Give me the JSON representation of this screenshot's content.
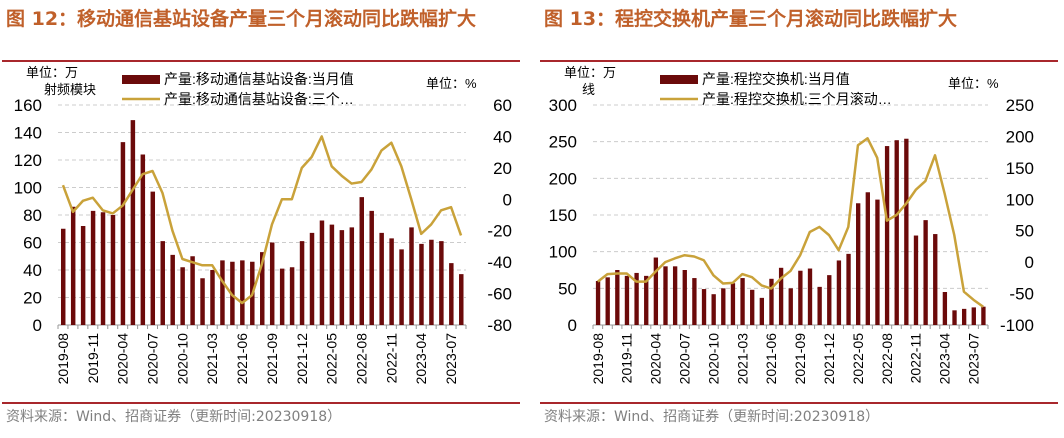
{
  "source": "资料来源：Wind、招商证券（更新时间:20230918）",
  "colors": {
    "bar": "#6b0a0a",
    "line": "#c9a23a",
    "title": "#c0602a",
    "rule": "#a8272c"
  },
  "chart_data": [
    {
      "type": "bar+line",
      "title": "图 12：移动通信基站设备产量三个月滚动同比跌幅扩大",
      "left_unit": "单位：万",
      "left_unit2": "射频模块",
      "right_unit": "单位：%",
      "legend": [
        "产量:移动通信基站设备:当月值",
        "产量:移动通信基站设备:三个…"
      ],
      "ylim_left": [
        0,
        160
      ],
      "yticks_left": [
        0,
        20,
        40,
        60,
        80,
        100,
        120,
        140,
        160
      ],
      "ylim_right": [
        -80,
        60
      ],
      "yticks_right": [
        -80,
        -60,
        -40,
        -20,
        0,
        20,
        40,
        60
      ],
      "xtick_labels": [
        "2019-08",
        "2019-11",
        "2020-04",
        "2020-07",
        "2020-10",
        "2021-03",
        "2021-06",
        "2021-09",
        "2021-12",
        "2022-05",
        "2022-08",
        "2022-11",
        "2023-04",
        "2023-07"
      ],
      "bars": [
        70,
        86,
        72,
        83,
        82,
        80,
        133,
        149,
        124,
        97,
        61,
        51,
        42,
        50,
        34,
        40,
        47,
        46,
        47,
        46,
        53,
        60,
        41,
        42,
        61,
        67,
        76,
        73,
        69,
        71,
        93,
        83,
        67,
        63,
        55,
        71,
        59,
        62,
        61,
        45,
        37
      ],
      "line": [
        9,
        -8,
        -1,
        1,
        -7,
        -9,
        -4,
        6,
        16,
        18,
        4,
        -20,
        -38,
        -40,
        -42,
        -42,
        -52,
        -61,
        -66,
        -61,
        -41,
        -16,
        0,
        0,
        20,
        27,
        40,
        21,
        15,
        10,
        11,
        19,
        31,
        36,
        21,
        0,
        -22,
        -16,
        -7,
        -5,
        -23
      ]
    },
    {
      "type": "bar+line",
      "title": "图 13：程控交换机产量三个月滚动同比跌幅扩大",
      "left_unit": "单位：万",
      "left_unit2": "线",
      "right_unit": "单位：%",
      "legend": [
        "产量:程控交换机:当月值",
        "产量:程控交换机:三个月滚动…"
      ],
      "ylim_left": [
        0,
        300
      ],
      "yticks_left": [
        0,
        50,
        100,
        150,
        200,
        250,
        300
      ],
      "ylim_right": [
        -100,
        250
      ],
      "yticks_right": [
        -100,
        -50,
        0,
        50,
        100,
        150,
        200,
        250
      ],
      "xtick_labels": [
        "2019-08",
        "2019-11",
        "2020-04",
        "2020-07",
        "2020-10",
        "2021-03",
        "2021-06",
        "2021-09",
        "2021-12",
        "2022-05",
        "2022-08",
        "2022-11",
        "2023-04",
        "2023-07"
      ],
      "bars": [
        60,
        65,
        75,
        67,
        71,
        67,
        92,
        80,
        80,
        75,
        64,
        49,
        42,
        50,
        57,
        64,
        48,
        37,
        63,
        78,
        50,
        74,
        77,
        52,
        68,
        88,
        97,
        166,
        181,
        171,
        244,
        252,
        254,
        122,
        143,
        124,
        45,
        20,
        22,
        24,
        25
      ],
      "line": [
        -31,
        -19,
        -18,
        -18,
        -31,
        -31,
        -15,
        0,
        6,
        11,
        9,
        3,
        -21,
        -34,
        -33,
        -19,
        -24,
        -37,
        -42,
        -26,
        -14,
        11,
        48,
        56,
        43,
        19,
        56,
        186,
        197,
        166,
        66,
        75,
        93,
        115,
        129,
        170,
        109,
        43,
        -47,
        -60,
        -71
      ]
    }
  ]
}
